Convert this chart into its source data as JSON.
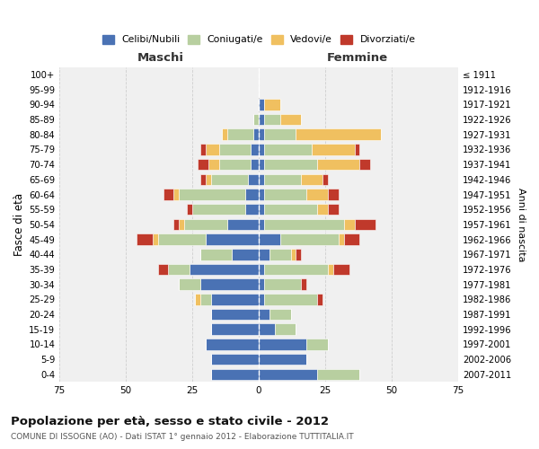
{
  "age_groups": [
    "0-4",
    "5-9",
    "10-14",
    "15-19",
    "20-24",
    "25-29",
    "30-34",
    "35-39",
    "40-44",
    "45-49",
    "50-54",
    "55-59",
    "60-64",
    "65-69",
    "70-74",
    "75-79",
    "80-84",
    "85-89",
    "90-94",
    "95-99",
    "100+"
  ],
  "birth_years": [
    "2007-2011",
    "2002-2006",
    "1997-2001",
    "1992-1996",
    "1987-1991",
    "1982-1986",
    "1977-1981",
    "1972-1976",
    "1967-1971",
    "1962-1966",
    "1957-1961",
    "1952-1956",
    "1947-1951",
    "1942-1946",
    "1937-1941",
    "1932-1936",
    "1927-1931",
    "1922-1926",
    "1917-1921",
    "1912-1916",
    "≤ 1911"
  ],
  "male": {
    "celibi": [
      18,
      18,
      20,
      18,
      18,
      18,
      22,
      26,
      10,
      20,
      12,
      5,
      5,
      4,
      3,
      3,
      2,
      0,
      0,
      0,
      0
    ],
    "coniugati": [
      0,
      0,
      0,
      0,
      0,
      4,
      8,
      8,
      12,
      18,
      16,
      20,
      25,
      14,
      12,
      12,
      10,
      2,
      0,
      0,
      0
    ],
    "vedovi": [
      0,
      0,
      0,
      0,
      0,
      2,
      0,
      0,
      0,
      2,
      2,
      0,
      2,
      2,
      4,
      5,
      2,
      0,
      0,
      0,
      0
    ],
    "divorziati": [
      0,
      0,
      0,
      0,
      0,
      0,
      0,
      4,
      0,
      6,
      2,
      2,
      4,
      2,
      4,
      2,
      0,
      0,
      0,
      0,
      0
    ]
  },
  "female": {
    "nubili": [
      22,
      18,
      18,
      6,
      4,
      2,
      2,
      2,
      4,
      8,
      2,
      2,
      2,
      2,
      2,
      2,
      2,
      2,
      2,
      0,
      0
    ],
    "coniugate": [
      16,
      0,
      8,
      8,
      8,
      20,
      14,
      24,
      8,
      22,
      30,
      20,
      16,
      14,
      20,
      18,
      12,
      6,
      0,
      0,
      0
    ],
    "vedove": [
      0,
      0,
      0,
      0,
      0,
      0,
      0,
      2,
      2,
      2,
      4,
      4,
      8,
      8,
      16,
      16,
      32,
      8,
      6,
      0,
      0
    ],
    "divorziate": [
      0,
      0,
      0,
      0,
      0,
      2,
      2,
      6,
      2,
      6,
      8,
      4,
      4,
      2,
      4,
      2,
      0,
      0,
      0,
      0,
      0
    ]
  },
  "color_celibi": "#4a72b4",
  "color_coniugati": "#b8cfa0",
  "color_vedovi": "#f0c060",
  "color_divorziati": "#c0392b",
  "xlim": 75,
  "title": "Popolazione per età, sesso e stato civile - 2012",
  "subtitle": "COMUNE DI ISSOGNE (AO) - Dati ISTAT 1° gennaio 2012 - Elaborazione TUTTITALIA.IT",
  "xlabel_left": "Maschi",
  "xlabel_right": "Femmine",
  "ylabel_left": "Fasce di età",
  "ylabel_right": "Anni di nascita",
  "legend_labels": [
    "Celibi/Nubili",
    "Coniugati/e",
    "Vedovi/e",
    "Divorziati/e"
  ],
  "bg_color": "#ffffff",
  "plot_bg": "#f0f0f0",
  "grid_color": "#cccccc"
}
